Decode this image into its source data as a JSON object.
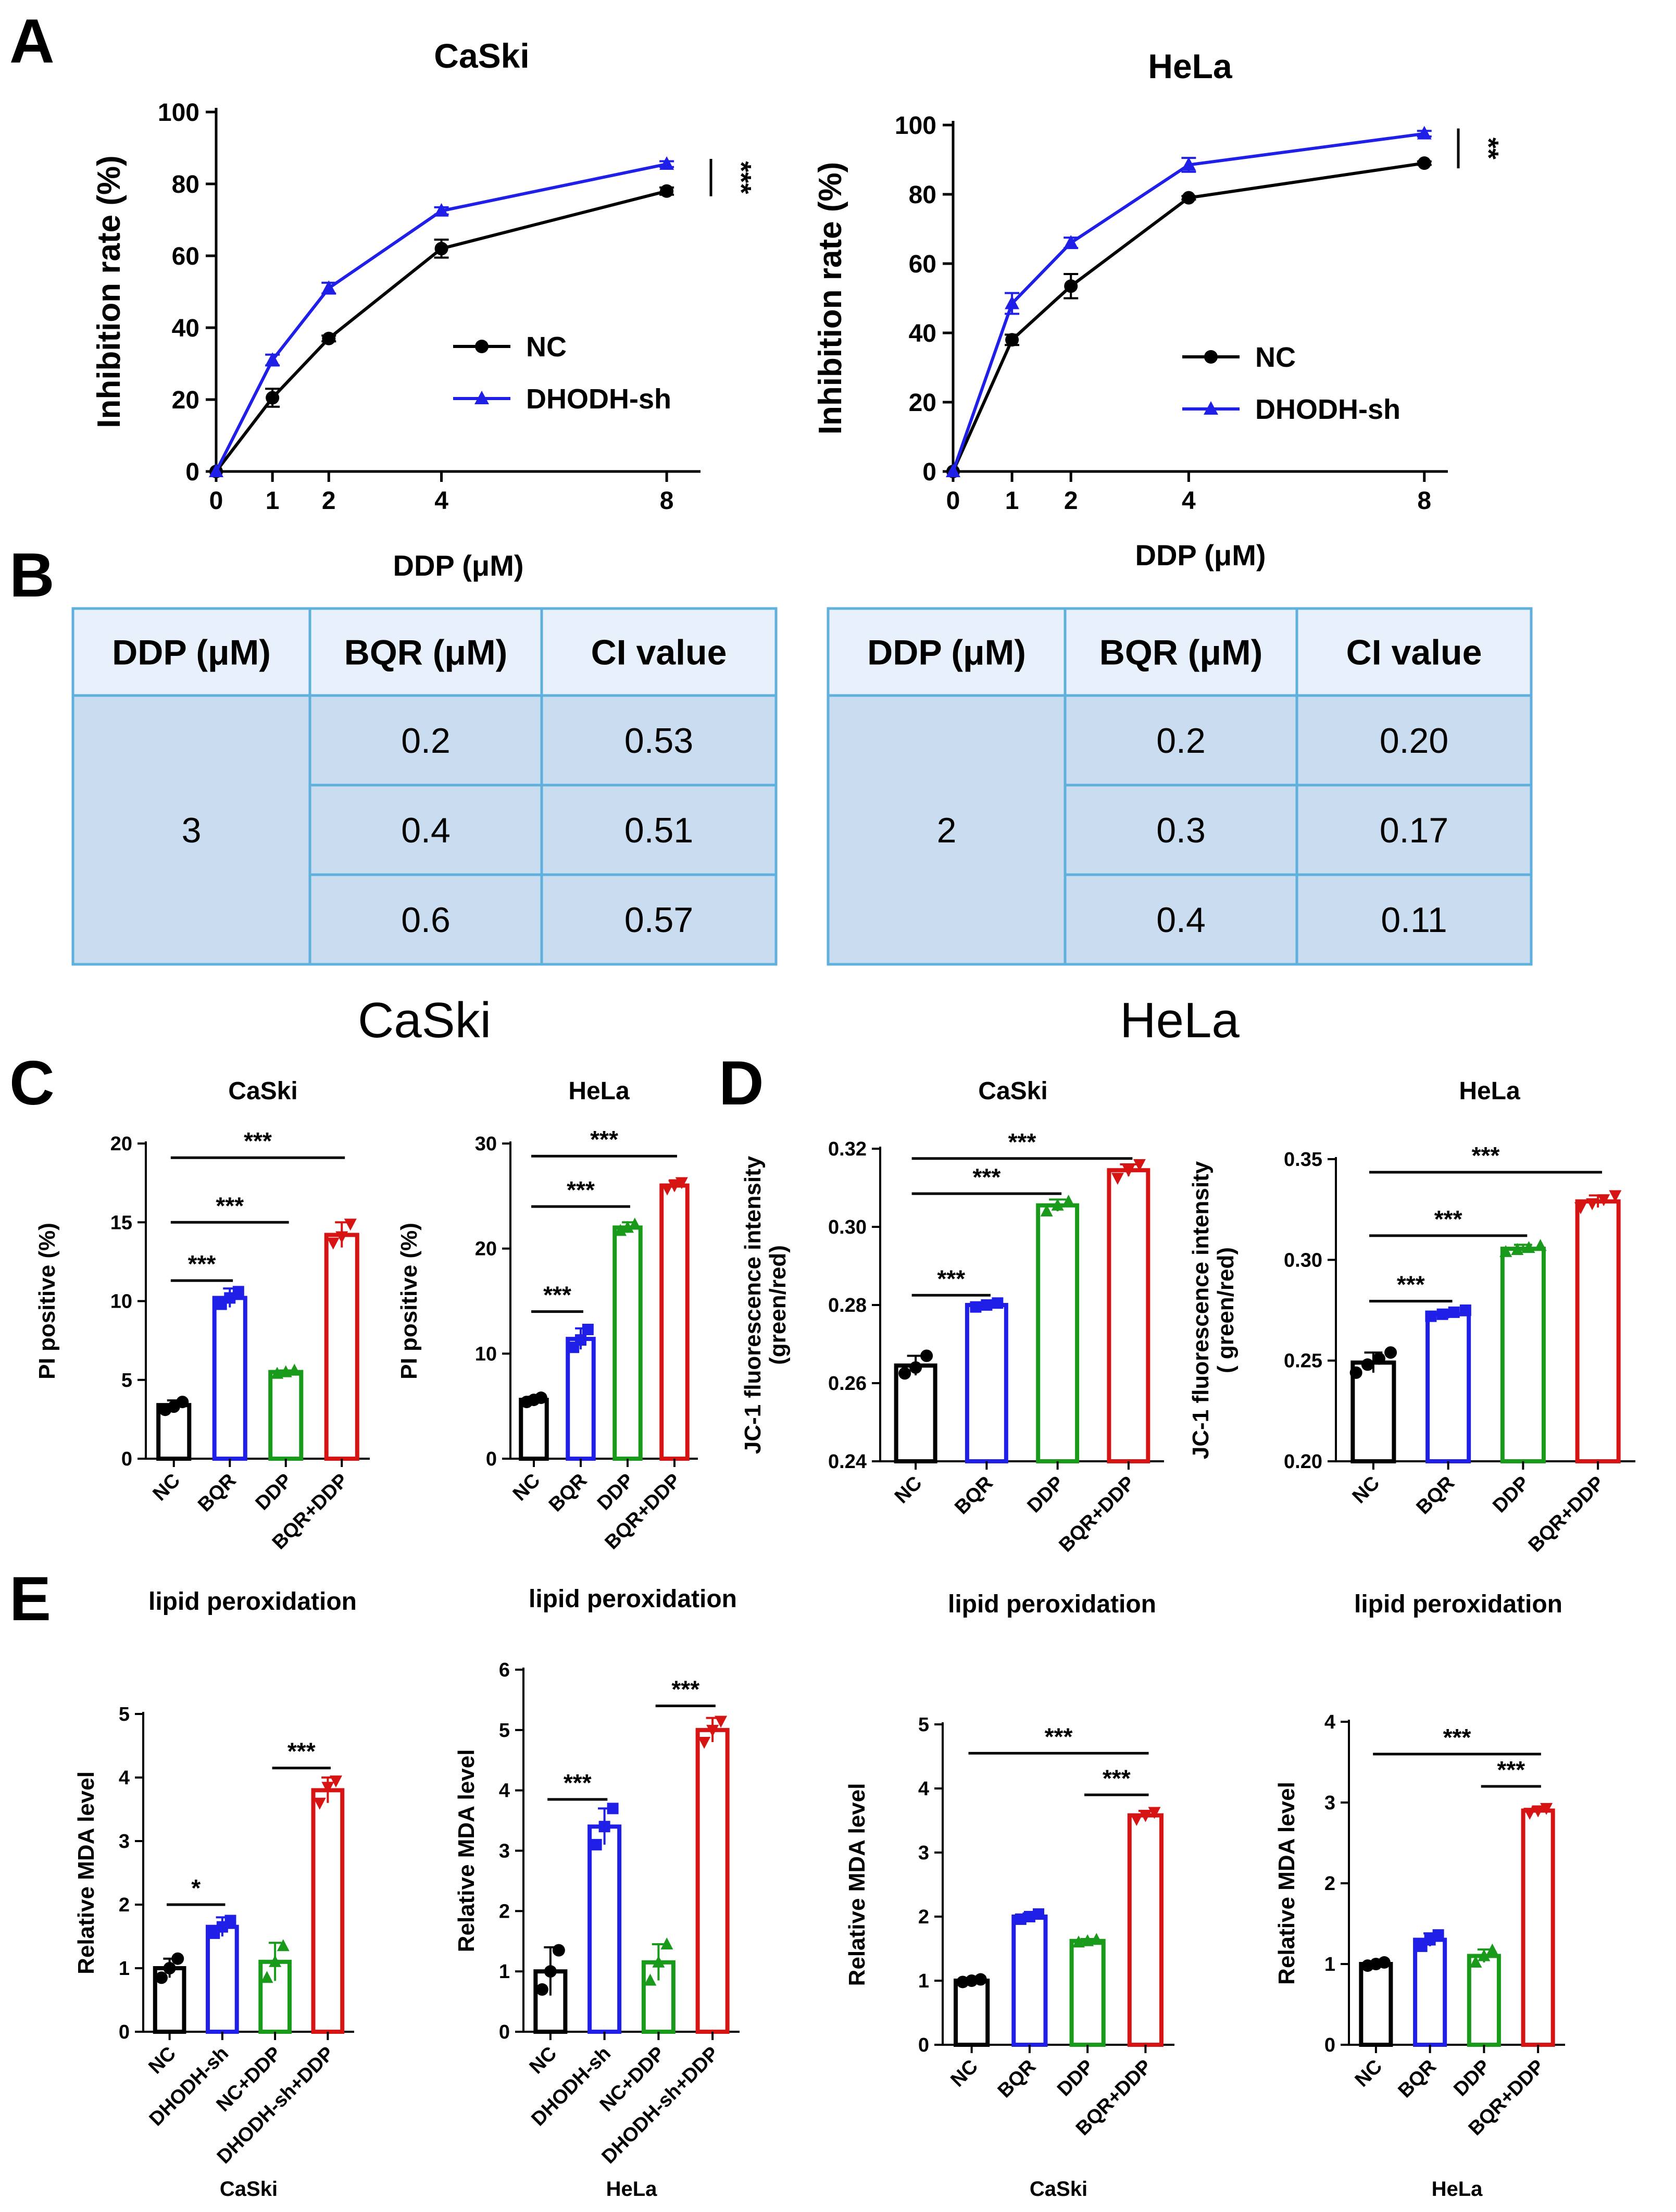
{
  "panels": {
    "A": "A",
    "B": "B",
    "C": "C",
    "D": "D",
    "E": "E"
  },
  "colors": {
    "black": "#000000",
    "blue": "#1f1fe8",
    "green": "#1a9a1a",
    "red": "#d61414",
    "table_border": "#5fb0dc",
    "table_head_bg": "#e8f1fb",
    "table_body_bg": "#c9dcf0"
  },
  "tables": [
    {
      "caption": "CaSki",
      "headers": [
        "DDP (μM)",
        "BQR (μM)",
        "CI value"
      ],
      "ddp": "3",
      "rows": [
        [
          "0.2",
          "0.53"
        ],
        [
          "0.4",
          "0.51"
        ],
        [
          "0.6",
          "0.57"
        ]
      ]
    },
    {
      "caption": "HeLa",
      "headers": [
        "DDP (μM)",
        "BQR (μM)",
        "CI value"
      ],
      "ddp": "2",
      "rows": [
        [
          "0.2",
          "0.20"
        ],
        [
          "0.3",
          "0.17"
        ],
        [
          "0.4",
          "0.11"
        ]
      ]
    }
  ],
  "chart_data": [
    {
      "id": "A1",
      "type": "line",
      "title": "CaSki",
      "xlabel": "DDP (μM)",
      "ylabel": "Inhibition rate (%)",
      "x": [
        0,
        1,
        2,
        4,
        8
      ],
      "xlim": [
        0,
        8.6
      ],
      "ylim": [
        0,
        100
      ],
      "yticks": [
        0,
        20,
        40,
        60,
        80,
        100
      ],
      "series": [
        {
          "name": "NC",
          "color": "#000000",
          "marker": "circle",
          "values": [
            0,
            20.5,
            37,
            62,
            78
          ],
          "errors": [
            0,
            2.5,
            0.8,
            2.5,
            1
          ]
        },
        {
          "name": "DHODH-sh",
          "color": "#1f1fe8",
          "marker": "triangle",
          "values": [
            0,
            31,
            51,
            72.5,
            85.5
          ],
          "errors": [
            0,
            1.5,
            1.5,
            1,
            0.8
          ]
        }
      ],
      "significance": "***"
    },
    {
      "id": "A2",
      "type": "line",
      "title": "HeLa",
      "xlabel": "DDP (μM)",
      "ylabel": "Inhibition rate (%)",
      "x": [
        0,
        1,
        2,
        4,
        8
      ],
      "xlim": [
        0,
        8.4
      ],
      "ylim": [
        0,
        100
      ],
      "yticks": [
        0,
        20,
        40,
        60,
        80,
        100
      ],
      "series": [
        {
          "name": "NC",
          "color": "#000000",
          "marker": "circle",
          "values": [
            0,
            38,
            53.5,
            79,
            89
          ],
          "errors": [
            0,
            1.5,
            3.5,
            0.5,
            0.5
          ]
        },
        {
          "name": "DHODH-sh",
          "color": "#1f1fe8",
          "marker": "triangle",
          "values": [
            0,
            48.5,
            66,
            88.5,
            97.5
          ],
          "errors": [
            0,
            3,
            1.5,
            2,
            0.8
          ]
        }
      ],
      "significance": "**"
    },
    {
      "id": "C1",
      "type": "bar",
      "title": "CaSki",
      "ylabel": "PI positive (%)",
      "categories": [
        "NC",
        "BQR",
        "DDP",
        "BQR+DDP"
      ],
      "values": [
        3.4,
        10.2,
        5.5,
        14.2
      ],
      "errors": [
        0.3,
        0.6,
        0.1,
        0.8
      ],
      "points": [
        [
          3.1,
          3.3,
          3.6
        ],
        [
          9.8,
          10.2,
          10.6
        ],
        [
          5.4,
          5.5,
          5.6
        ],
        [
          13.7,
          14.1,
          14.9
        ]
      ],
      "ylim": [
        0,
        20
      ],
      "yticks": [
        0,
        5,
        10,
        15,
        20
      ],
      "brackets": [
        {
          "from": 0,
          "to": 1,
          "label": "***"
        },
        {
          "from": 0,
          "to": 2,
          "label": "***"
        },
        {
          "from": 0,
          "to": 3,
          "label": "***"
        }
      ]
    },
    {
      "id": "C2",
      "type": "bar",
      "title": "HeLa",
      "ylabel": "PI positive (%)",
      "categories": [
        "NC",
        "BQR",
        "DDP",
        "BQR+DDP"
      ],
      "values": [
        5.6,
        11.4,
        22,
        26
      ],
      "errors": [
        0.3,
        1,
        0.5,
        0.5
      ],
      "points": [
        [
          5.4,
          5.6,
          5.8
        ],
        [
          10.6,
          11.3,
          12.3
        ],
        [
          21.7,
          22,
          22.3
        ],
        [
          25.7,
          26,
          26.3
        ]
      ],
      "ylim": [
        0,
        30
      ],
      "yticks": [
        0,
        10,
        20,
        30
      ],
      "brackets": [
        {
          "from": 0,
          "to": 1,
          "label": "***"
        },
        {
          "from": 0,
          "to": 2,
          "label": "***"
        },
        {
          "from": 0,
          "to": 3,
          "label": "***"
        }
      ]
    },
    {
      "id": "D1",
      "type": "bar",
      "title": "CaSki",
      "ylabel": "JC-1 fluorescence intensity",
      "ylabel2": "(green/red)",
      "categories": [
        "NC",
        "BQR",
        "DDP",
        "BQR+DDP"
      ],
      "values": [
        0.2645,
        0.28,
        0.3055,
        0.3145
      ],
      "errors": [
        0.0025,
        0.0005,
        0.0015,
        0.0015
      ],
      "points": [
        [
          0.2625,
          0.264,
          0.267
        ],
        [
          0.2795,
          0.28,
          0.2805
        ],
        [
          0.304,
          0.3055,
          0.3065
        ],
        [
          0.3125,
          0.3145,
          0.316
        ]
      ],
      "ylim": [
        0.24,
        0.32
      ],
      "yticks": [
        0.24,
        0.26,
        0.28,
        0.3,
        0.32
      ],
      "ytickLabels": [
        "0.24",
        "0.26",
        "0.28",
        "0.30",
        "0.32"
      ],
      "brackets": [
        {
          "from": 0,
          "to": 1,
          "label": "***"
        },
        {
          "from": 0,
          "to": 2,
          "label": "***"
        },
        {
          "from": 0,
          "to": 3,
          "label": "***"
        }
      ]
    },
    {
      "id": "D2",
      "type": "bar",
      "title": "HeLa",
      "ylabel": "JC-1 fluorescence intensity",
      "ylabel2": "( green/red)",
      "categories": [
        "NC",
        "BQR",
        "DDP",
        "BQR+DDP"
      ],
      "values": [
        0.249,
        0.273,
        0.3055,
        0.329
      ],
      "errors": [
        0.005,
        0.002,
        0.002,
        0.003
      ],
      "points": [
        [
          0.244,
          0.248,
          0.251,
          0.254
        ],
        [
          0.272,
          0.273,
          0.274,
          0.275
        ],
        [
          0.304,
          0.305,
          0.306,
          0.307
        ],
        [
          0.326,
          0.328,
          0.33,
          0.332
        ]
      ],
      "ylim": [
        0.2,
        0.35
      ],
      "yticks": [
        0.2,
        0.25,
        0.3,
        0.35
      ],
      "ytickLabels": [
        "0.20",
        "0.25",
        "0.30",
        "0.35"
      ],
      "brackets": [
        {
          "from": 0,
          "to": 1,
          "label": "***"
        },
        {
          "from": 0,
          "to": 2,
          "label": "***"
        },
        {
          "from": 0,
          "to": 3,
          "label": "***"
        }
      ]
    },
    {
      "id": "E1",
      "type": "bar",
      "title": "lipid peroxidation",
      "ylabel": "Relative MDA level",
      "footer": "CaSki",
      "categories": [
        "NC",
        "DHODH-sh",
        "NC+DDP",
        "DHODH-sh+DDP"
      ],
      "values": [
        1.0,
        1.65,
        1.1,
        3.8
      ],
      "errors": [
        0.15,
        0.15,
        0.3,
        0.2
      ],
      "points": [
        [
          0.85,
          1.0,
          1.15
        ],
        [
          1.55,
          1.65,
          1.75
        ],
        [
          0.85,
          1.1,
          1.35
        ],
        [
          3.6,
          3.85,
          3.95
        ]
      ],
      "ylim": [
        0,
        5
      ],
      "yticks": [
        0,
        1,
        2,
        3,
        4,
        5
      ],
      "brackets": [
        {
          "from": 0,
          "to": 1,
          "label": "*"
        },
        {
          "from": 2,
          "to": 3,
          "label": "***"
        }
      ]
    },
    {
      "id": "E2",
      "type": "bar",
      "title": "lipid peroxidation",
      "ylabel": "Relative MDA level",
      "footer": "HeLa",
      "categories": [
        "NC",
        "DHODH-sh",
        "NC+DDP",
        "DHODH-sh+DDP"
      ],
      "values": [
        1.0,
        3.4,
        1.15,
        5.0
      ],
      "errors": [
        0.4,
        0.3,
        0.3,
        0.2
      ],
      "points": [
        [
          0.7,
          1.0,
          1.35
        ],
        [
          3.1,
          3.4,
          3.7
        ],
        [
          0.85,
          1.15,
          1.45
        ],
        [
          4.8,
          5.0,
          5.15
        ]
      ],
      "ylim": [
        0,
        6
      ],
      "yticks": [
        0,
        1,
        2,
        3,
        4,
        5,
        6
      ],
      "brackets": [
        {
          "from": 0,
          "to": 1,
          "label": "***"
        },
        {
          "from": 2,
          "to": 3,
          "label": "***"
        }
      ]
    },
    {
      "id": "E3",
      "type": "bar",
      "title": "lipid peroxidation",
      "ylabel": "Relative MDA level",
      "footer": "CaSki",
      "categories": [
        "NC",
        "BQR",
        "DDP",
        "BQR+DDP"
      ],
      "values": [
        1.0,
        2.0,
        1.62,
        3.58
      ],
      "errors": [
        0.03,
        0.05,
        0.03,
        0.07
      ],
      "points": [
        [
          0.98,
          1.0,
          1.02
        ],
        [
          1.96,
          2.0,
          2.04
        ],
        [
          1.6,
          1.62,
          1.64
        ],
        [
          3.52,
          3.58,
          3.63
        ]
      ],
      "ylim": [
        0,
        5
      ],
      "yticks": [
        0,
        1,
        2,
        3,
        4,
        5
      ],
      "brackets": [
        {
          "from": 0,
          "to": 3,
          "label": "***"
        },
        {
          "from": 2,
          "to": 3,
          "label": "***"
        }
      ]
    },
    {
      "id": "E4",
      "type": "bar",
      "title": "lipid peroxidation",
      "ylabel": "Relative MDA level",
      "footer": "HeLa",
      "categories": [
        "NC",
        "BQR",
        "DDP",
        "BQR+DDP"
      ],
      "values": [
        1.0,
        1.3,
        1.1,
        2.9
      ],
      "errors": [
        0.03,
        0.08,
        0.08,
        0.04
      ],
      "points": [
        [
          0.98,
          1.0,
          1.02
        ],
        [
          1.22,
          1.3,
          1.36
        ],
        [
          1.02,
          1.1,
          1.17
        ],
        [
          2.87,
          2.9,
          2.93
        ]
      ],
      "ylim": [
        0,
        4
      ],
      "yticks": [
        0,
        1,
        2,
        3,
        4
      ],
      "brackets": [
        {
          "from": 0,
          "to": 3,
          "label": "***"
        },
        {
          "from": 2,
          "to": 3,
          "label": "***"
        }
      ]
    }
  ]
}
